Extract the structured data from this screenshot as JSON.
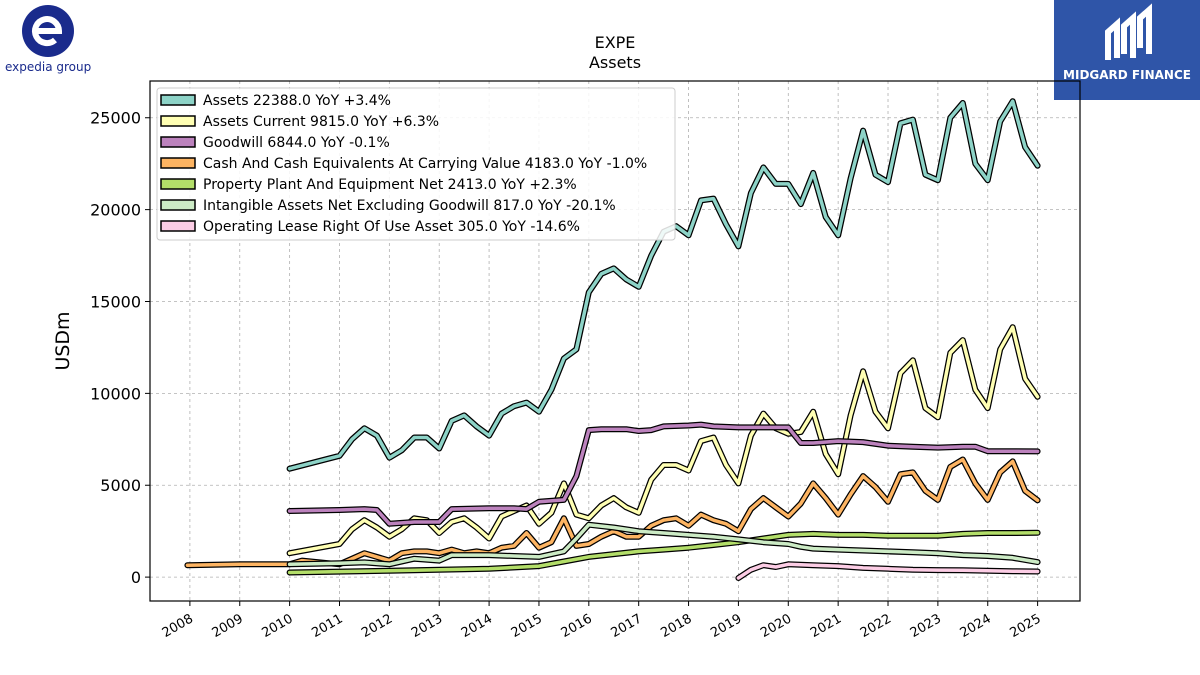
{
  "logos": {
    "left_text": "expedia group",
    "right_text": "MIDGARD FINANCE"
  },
  "colors": {
    "expedia_blue": "#1a2b8c",
    "midgard_blue": "#2f55a8"
  },
  "chart_data": {
    "type": "line",
    "title": "EXPE",
    "subtitle": "Assets",
    "xlabel": "",
    "ylabel": "USDm",
    "xlim": [
      2007.2,
      2025.85
    ],
    "ylim": [
      -1300,
      27000
    ],
    "x_ticks": [
      2008,
      2009,
      2010,
      2011,
      2012,
      2013,
      2014,
      2015,
      2016,
      2017,
      2018,
      2019,
      2020,
      2021,
      2022,
      2023,
      2024,
      2025
    ],
    "y_ticks": [
      0,
      5000,
      10000,
      15000,
      20000,
      25000
    ],
    "grid": true,
    "legend_position": "top-left",
    "series": [
      {
        "name": "Assets",
        "legend": "Assets  22388.0 YoY +3.4%",
        "color": "#8dd3c7",
        "x": [
          2010.0,
          2011.0,
          2011.25,
          2011.5,
          2011.75,
          2012.0,
          2012.25,
          2012.5,
          2012.75,
          2013.0,
          2013.25,
          2013.5,
          2013.75,
          2014.0,
          2014.25,
          2014.5,
          2014.75,
          2015.0,
          2015.25,
          2015.5,
          2015.75,
          2016.0,
          2016.25,
          2016.5,
          2016.75,
          2017.0,
          2017.25,
          2017.5,
          2017.75,
          2018.0,
          2018.25,
          2018.5,
          2018.75,
          2019.0,
          2019.25,
          2019.5,
          2019.75,
          2020.0,
          2020.25,
          2020.5,
          2020.75,
          2021.0,
          2021.25,
          2021.5,
          2021.75,
          2022.0,
          2022.25,
          2022.5,
          2022.75,
          2023.0,
          2023.25,
          2023.5,
          2023.75,
          2024.0,
          2024.25,
          2024.5,
          2024.75,
          2025.0
        ],
        "y": [
          5900,
          6600,
          7500,
          8100,
          7700,
          6500,
          6900,
          7600,
          7600,
          7000,
          8500,
          8800,
          8200,
          7700,
          8900,
          9300,
          9500,
          9000,
          10200,
          11900,
          12400,
          15500,
          16500,
          16800,
          16200,
          15800,
          17500,
          18800,
          19100,
          18600,
          20500,
          20600,
          19200,
          18000,
          20900,
          22300,
          21400,
          21400,
          20300,
          22000,
          19600,
          18600,
          21700,
          24300,
          21900,
          21500,
          24700,
          24900,
          21900,
          21600,
          25000,
          25800,
          22500,
          21600,
          24800,
          25900,
          23400,
          22388
        ]
      },
      {
        "name": "Assets Current",
        "legend": "Assets Current  9815.0 YoY +6.3%",
        "color": "#ffffb3",
        "x": [
          2010.0,
          2011.0,
          2011.25,
          2011.5,
          2011.75,
          2012.0,
          2012.25,
          2012.5,
          2012.75,
          2013.0,
          2013.25,
          2013.5,
          2013.75,
          2014.0,
          2014.25,
          2014.5,
          2014.75,
          2015.0,
          2015.25,
          2015.5,
          2015.75,
          2016.0,
          2016.25,
          2016.5,
          2016.75,
          2017.0,
          2017.25,
          2017.5,
          2017.75,
          2018.0,
          2018.25,
          2018.5,
          2018.75,
          2019.0,
          2019.25,
          2019.5,
          2019.75,
          2020.0,
          2020.25,
          2020.5,
          2020.75,
          2021.0,
          2021.25,
          2021.5,
          2021.75,
          2022.0,
          2022.25,
          2022.5,
          2022.75,
          2023.0,
          2023.25,
          2023.5,
          2023.75,
          2024.0,
          2024.25,
          2024.5,
          2024.75,
          2025.0
        ],
        "y": [
          1300,
          1800,
          2600,
          3100,
          2700,
          2200,
          2600,
          3200,
          3100,
          2400,
          3000,
          3200,
          2700,
          2100,
          3300,
          3600,
          3900,
          2900,
          3500,
          5100,
          3400,
          3200,
          3900,
          4300,
          3800,
          3500,
          5300,
          6100,
          6100,
          5800,
          7400,
          7600,
          6100,
          5100,
          7700,
          8900,
          8100,
          7800,
          7900,
          9000,
          6700,
          5600,
          8800,
          11200,
          9000,
          8100,
          11100,
          11800,
          9200,
          8700,
          12200,
          12900,
          10200,
          9200,
          12400,
          13600,
          10800,
          9815
        ]
      },
      {
        "name": "Goodwill",
        "legend": "Goodwill  6844.0 YoY -0.1%",
        "color": "#bebada",
        "x": [
          2010.0,
          2011.0,
          2011.5,
          2011.75,
          2012.0,
          2012.5,
          2012.75,
          2013.0,
          2013.25,
          2014.0,
          2014.5,
          2014.75,
          2015.0,
          2015.5,
          2015.75,
          2016.0,
          2016.25,
          2016.75,
          2017.0,
          2017.25,
          2017.5,
          2018.0,
          2018.25,
          2018.5,
          2019.0,
          2019.5,
          2020.0,
          2020.25,
          2020.5,
          2021.0,
          2021.5,
          2022.0,
          2022.5,
          2023.0,
          2023.5,
          2023.75,
          2024.0,
          2024.5,
          2025.0
        ],
        "y": [
          3600,
          3650,
          3700,
          3650,
          2900,
          3000,
          3000,
          3000,
          3700,
          3750,
          3750,
          3700,
          4100,
          4200,
          5500,
          8000,
          8050,
          8050,
          7950,
          8000,
          8200,
          8250,
          8300,
          8200,
          8150,
          8150,
          8150,
          7300,
          7300,
          7400,
          7350,
          7150,
          7100,
          7050,
          7100,
          7100,
          6850,
          6850,
          6844
        ]
      },
      {
        "name": "Cash And Cash Equivalents At Carrying Value",
        "legend": "Cash And Cash Equivalents At Carrying Value  4183.0 YoY -1.0%",
        "color": "#fb8072",
        "x": [
          2007.95,
          2009.0,
          2010.0,
          2010.25,
          2011.0,
          2011.5,
          2011.75,
          2012.0,
          2012.25,
          2012.5,
          2012.75,
          2013.0,
          2013.25,
          2013.5,
          2013.75,
          2014.0,
          2014.25,
          2014.5,
          2014.75,
          2015.0,
          2015.25,
          2015.5,
          2015.75,
          2016.0,
          2016.25,
          2016.5,
          2016.75,
          2017.0,
          2017.25,
          2017.5,
          2017.75,
          2018.0,
          2018.25,
          2018.5,
          2018.75,
          2019.0,
          2019.25,
          2019.5,
          2019.75,
          2020.0,
          2020.25,
          2020.5,
          2020.75,
          2021.0,
          2021.25,
          2021.5,
          2021.75,
          2022.0,
          2022.25,
          2022.5,
          2022.75,
          2023.0,
          2023.25,
          2023.5,
          2023.75,
          2024.0,
          2024.25,
          2024.5,
          2024.75,
          2025.0
        ],
        "y": [
          650,
          700,
          700,
          900,
          700,
          1300,
          1100,
          900,
          1300,
          1400,
          1400,
          1300,
          1500,
          1300,
          1400,
          1300,
          1600,
          1700,
          2400,
          1600,
          1900,
          3200,
          1700,
          1800,
          2200,
          2500,
          2200,
          2200,
          2800,
          3100,
          3200,
          2800,
          3400,
          3100,
          2900,
          2500,
          3700,
          4300,
          3800,
          3300,
          4000,
          5100,
          4300,
          3400,
          4500,
          5500,
          4900,
          4100,
          5600,
          5700,
          4700,
          4200,
          6000,
          6400,
          5100,
          4200,
          5700,
          6300,
          4700,
          4183
        ]
      },
      {
        "name": "Property Plant And Equipment Net",
        "legend": "Property Plant And Equipment Net  2413.0 YoY +2.3%",
        "color": "#b3de69",
        "x": [
          2010.0,
          2011.0,
          2012.0,
          2013.0,
          2014.0,
          2015.0,
          2015.5,
          2016.0,
          2016.5,
          2017.0,
          2017.5,
          2018.0,
          2018.5,
          2019.0,
          2019.5,
          2020.0,
          2020.5,
          2021.0,
          2021.5,
          2022.0,
          2022.5,
          2023.0,
          2023.5,
          2024.0,
          2024.5,
          2025.0
        ],
        "y": [
          250,
          300,
          350,
          400,
          450,
          600,
          850,
          1100,
          1250,
          1400,
          1500,
          1600,
          1750,
          1900,
          2100,
          2300,
          2350,
          2300,
          2300,
          2250,
          2250,
          2250,
          2350,
          2400,
          2400,
          2413
        ]
      },
      {
        "name": "Intangible Assets Net Excluding Goodwill",
        "legend": "Intangible Assets Net Excluding Goodwill  817.0 YoY -20.1%",
        "color": "#ccebc5",
        "x": [
          2010.0,
          2011.0,
          2011.5,
          2012.0,
          2012.5,
          2013.0,
          2013.25,
          2014.0,
          2014.5,
          2015.0,
          2015.5,
          2015.75,
          2016.0,
          2016.5,
          2017.0,
          2017.5,
          2018.0,
          2018.5,
          2019.0,
          2019.5,
          2020.0,
          2020.25,
          2020.5,
          2021.0,
          2021.5,
          2022.0,
          2022.5,
          2023.0,
          2023.5,
          2024.0,
          2024.5,
          2025.0
        ],
        "y": [
          700,
          750,
          800,
          700,
          1000,
          900,
          1200,
          1200,
          1150,
          1100,
          1400,
          2100,
          2850,
          2700,
          2500,
          2400,
          2300,
          2200,
          2050,
          1900,
          1800,
          1650,
          1550,
          1500,
          1450,
          1400,
          1350,
          1300,
          1200,
          1150,
          1050,
          817
        ]
      },
      {
        "name": "Operating Lease Right Of Use Asset",
        "legend": "Operating Lease Right Of Use Asset  305.0 YoY -14.6%",
        "color": "#fccde5",
        "x": [
          2019.0,
          2019.25,
          2019.5,
          2019.75,
          2020.0,
          2020.5,
          2021.0,
          2021.5,
          2022.0,
          2022.5,
          2023.0,
          2023.5,
          2024.0,
          2024.5,
          2025.0
        ],
        "y": [
          -50,
          400,
          650,
          550,
          700,
          650,
          600,
          500,
          450,
          400,
          380,
          370,
          350,
          320,
          305
        ]
      }
    ]
  }
}
